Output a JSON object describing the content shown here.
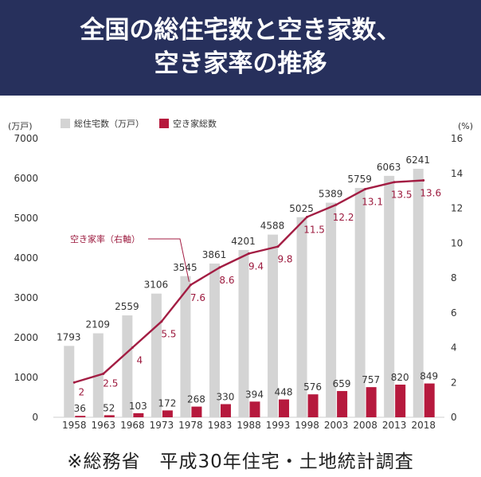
{
  "header": {
    "title_line1": "全国の総住宅数と空き家数、",
    "title_line2": "空き家率の推移"
  },
  "footer": {
    "source": "※総務省　平成30年住宅・土地統計調査"
  },
  "chart_data": {
    "type": "bar",
    "categories": [
      "1958",
      "1963",
      "1968",
      "1973",
      "1978",
      "1983",
      "1988",
      "1993",
      "1998",
      "2003",
      "2008",
      "2013",
      "2018"
    ],
    "series": [
      {
        "name": "総住宅数（万戸）",
        "kind": "bar",
        "axis": "left",
        "values": [
          1793,
          2109,
          2559,
          3106,
          3545,
          3861,
          4201,
          4588,
          5025,
          5389,
          5759,
          6063,
          6241
        ]
      },
      {
        "name": "空き家総数",
        "kind": "bar",
        "axis": "left",
        "values": [
          36,
          52,
          103,
          172,
          268,
          330,
          394,
          448,
          576,
          659,
          757,
          820,
          849
        ]
      },
      {
        "name": "空き家率（右軸）",
        "kind": "line",
        "axis": "right",
        "values": [
          2,
          2.5,
          4,
          5.5,
          7.6,
          8.6,
          9.4,
          9.8,
          11.5,
          12.2,
          13.1,
          13.5,
          13.6
        ]
      }
    ],
    "y_left": {
      "unit": "(万戸)",
      "ylim": [
        0,
        7000
      ],
      "ticks": [
        "0",
        "1000",
        "2000",
        "3000",
        "4000",
        "5000",
        "6000",
        "7000"
      ]
    },
    "y_right": {
      "unit": "(%)",
      "ylim": [
        0,
        16
      ],
      "ticks": [
        "0",
        "2",
        "4",
        "6",
        "8",
        "10",
        "12",
        "14",
        "16"
      ]
    },
    "legend_position": "top-left",
    "line_label": "空き家率（右軸）",
    "grid": false,
    "colors": {
      "total": "#d4d4d4",
      "vacant": "#b6193d",
      "rate": "#a31d43",
      "rate_label": "#9c1a3e",
      "axis_text": "#333333"
    }
  }
}
